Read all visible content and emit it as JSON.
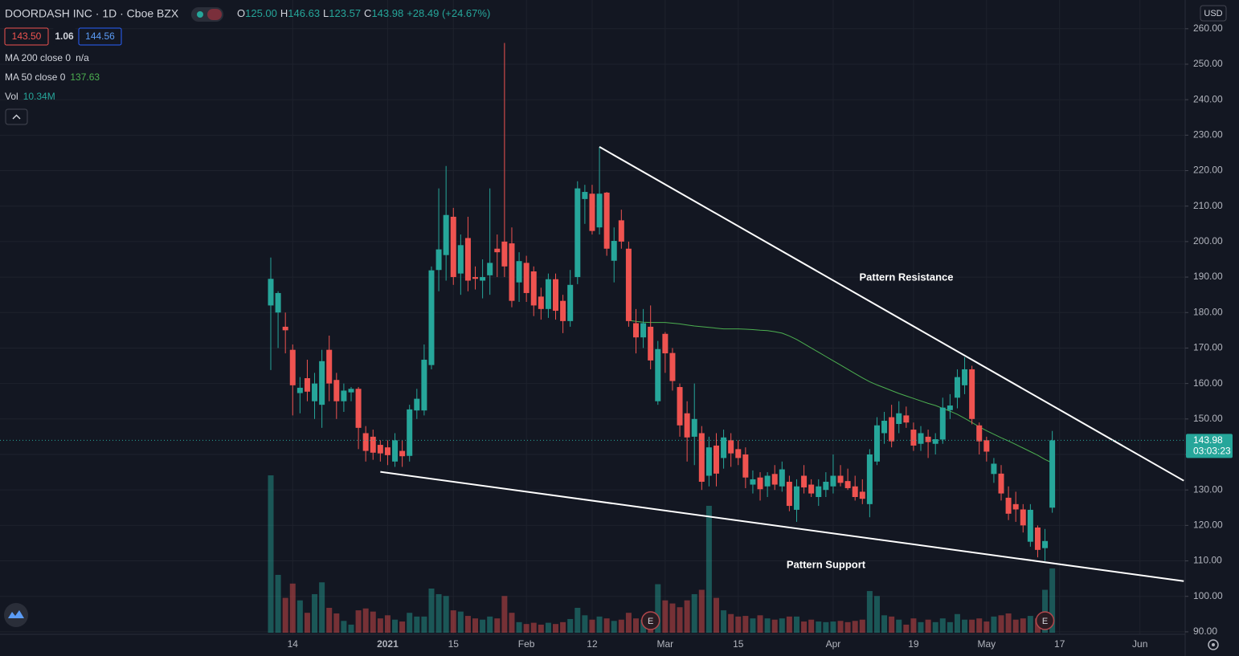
{
  "chart_data": {
    "type": "candlestick",
    "title": "DOORDASH INC · 1D · Cboe BZX",
    "ohlc_header": [
      {
        "label": "O",
        "value": "125.00"
      },
      {
        "label": "H",
        "value": "146.63"
      },
      {
        "label": "L",
        "value": "123.57"
      },
      {
        "label": "C",
        "value": "143.98"
      }
    ],
    "change": "+28.49 (+24.67%)",
    "badges": [
      "143.50",
      "1.06",
      "144.56"
    ],
    "currency": "USD",
    "up_color": "#26a69a",
    "down_color": "#ef5350",
    "grid": true,
    "categories": [
      "2020-12-09",
      "2020-12-10",
      "2020-12-11",
      "2020-12-14",
      "2020-12-15",
      "2020-12-16",
      "2020-12-17",
      "2020-12-18",
      "2020-12-21",
      "2020-12-22",
      "2020-12-23",
      "2020-12-24",
      "2020-12-28",
      "2020-12-29",
      "2020-12-30",
      "2020-12-31",
      "2021-01-04",
      "2021-01-05",
      "2021-01-06",
      "2021-01-07",
      "2021-01-08",
      "2021-01-11",
      "2021-01-12",
      "2021-01-13",
      "2021-01-14",
      "2021-01-15",
      "2021-01-19",
      "2021-01-20",
      "2021-01-21",
      "2021-01-22",
      "2021-01-25",
      "2021-01-26",
      "2021-01-27",
      "2021-01-28",
      "2021-01-29",
      "2021-02-01",
      "2021-02-02",
      "2021-02-03",
      "2021-02-04",
      "2021-02-05",
      "2021-02-08",
      "2021-02-09",
      "2021-02-10",
      "2021-02-11",
      "2021-02-12",
      "2021-02-16",
      "2021-02-17",
      "2021-02-18",
      "2021-02-19",
      "2021-02-22",
      "2021-02-23",
      "2021-02-24",
      "2021-02-25",
      "2021-02-26",
      "2021-03-01",
      "2021-03-02",
      "2021-03-03",
      "2021-03-04",
      "2021-03-05",
      "2021-03-08",
      "2021-03-09",
      "2021-03-10",
      "2021-03-11",
      "2021-03-12",
      "2021-03-15",
      "2021-03-16",
      "2021-03-17",
      "2021-03-18",
      "2021-03-19",
      "2021-03-22",
      "2021-03-23",
      "2021-03-24",
      "2021-03-25",
      "2021-03-26",
      "2021-03-29",
      "2021-03-30",
      "2021-03-31",
      "2021-04-01",
      "2021-04-05",
      "2021-04-06",
      "2021-04-07",
      "2021-04-08",
      "2021-04-09",
      "2021-04-12",
      "2021-04-13",
      "2021-04-14",
      "2021-04-15",
      "2021-04-16",
      "2021-04-19",
      "2021-04-20",
      "2021-04-21",
      "2021-04-22",
      "2021-04-23",
      "2021-04-26",
      "2021-04-27",
      "2021-04-28",
      "2021-04-29",
      "2021-04-30",
      "2021-05-03",
      "2021-05-04",
      "2021-05-05",
      "2021-05-06",
      "2021-05-07",
      "2021-05-10",
      "2021-05-11",
      "2021-05-12",
      "2021-05-13",
      "2021-05-14"
    ],
    "open": [
      182,
      180,
      176,
      169.5,
      157.3,
      161.5,
      155,
      154,
      169.5,
      161,
      155,
      157.5,
      158.5,
      146,
      145,
      142.7,
      142,
      138,
      141,
      139.6,
      152.4,
      152.4,
      165.2,
      192,
      196.2,
      207,
      191,
      201,
      190,
      189,
      190.5,
      198,
      200,
      199.5,
      188.5,
      194,
      191.6,
      184.5,
      181,
      189.4,
      183.3,
      177.6,
      190,
      212,
      213.5,
      204,
      213.8,
      194.6,
      206,
      198,
      177,
      173,
      176,
      155,
      174,
      168.6,
      159,
      151.6,
      145,
      146,
      134,
      142.5,
      139,
      144,
      141.5,
      140,
      131.5,
      133.5,
      131,
      134.5,
      131,
      132.3,
      124.4,
      134,
      131.5,
      128,
      130,
      131,
      134,
      132.5,
      131,
      129.5,
      126,
      138,
      146,
      150.5,
      148.6,
      151,
      147,
      143,
      145,
      143,
      144.2,
      152.5,
      156,
      159.5,
      164,
      148.2,
      144,
      134.5,
      134.6,
      127.8,
      126,
      124.5,
      115.4,
      119.4,
      113.6,
      125
    ],
    "high": [
      195.5,
      186,
      180,
      171,
      161.8,
      166.7,
      163,
      169.5,
      173.5,
      163,
      160,
      159,
      159,
      148,
      147,
      144,
      144,
      146,
      144,
      154,
      158.5,
      171,
      193,
      215,
      221.3,
      209.5,
      202,
      207,
      193,
      195,
      215,
      202,
      256,
      204,
      197,
      196,
      193,
      187,
      191,
      191,
      185,
      192,
      217,
      216,
      216,
      226.7,
      214,
      204,
      209,
      200,
      181,
      181,
      182,
      172,
      174.5,
      170,
      160,
      155,
      160,
      148,
      145,
      146,
      147,
      146,
      144,
      142,
      135.5,
      135,
      135,
      137,
      138,
      134,
      133,
      137,
      133,
      133,
      135,
      140,
      137,
      136,
      134,
      133,
      141.5,
      150.5,
      152,
      154,
      155,
      153.5,
      149,
      148,
      147,
      146,
      156,
      157,
      164,
      167.4,
      165,
      149,
      145,
      139,
      137,
      131,
      129.5,
      126,
      126,
      120,
      119,
      146.63
    ],
    "low": [
      163.8,
      170,
      168.5,
      151,
      151.6,
      155,
      150,
      147.5,
      155,
      150,
      152,
      155,
      141.5,
      138,
      138.5,
      138,
      137,
      136.5,
      136.5,
      138,
      150,
      151,
      164,
      186,
      189,
      187.8,
      185,
      186,
      186.5,
      184,
      185,
      190,
      190,
      181.5,
      183,
      183,
      179,
      178,
      178.5,
      178,
      174.2,
      176,
      188,
      205,
      202,
      202,
      196,
      188.5,
      198,
      176,
      168.5,
      170,
      164,
      154,
      163,
      158,
      145,
      138,
      137,
      130,
      131,
      131,
      136,
      136.5,
      137,
      130.5,
      129,
      127,
      128,
      130,
      129.5,
      124,
      121,
      129,
      128,
      125.5,
      128,
      129,
      131,
      130,
      127,
      126,
      122.3,
      137,
      143,
      142,
      146,
      147.5,
      141,
      141,
      139,
      140,
      143,
      150,
      153,
      157,
      148.5,
      140,
      138,
      132,
      127,
      121.5,
      121,
      118,
      114,
      111,
      110,
      123.57
    ],
    "close": [
      189.5,
      185.5,
      175,
      159.5,
      158.8,
      157.7,
      160,
      166.3,
      160,
      155,
      158,
      158.5,
      147.5,
      141,
      140.5,
      140.3,
      139.8,
      144,
      139.5,
      152.7,
      155.7,
      166.7,
      191.9,
      197.8,
      207.5,
      190,
      199,
      189,
      189.5,
      190,
      194,
      197,
      193,
      183.3,
      194.5,
      185.5,
      182,
      181,
      189.4,
      180.5,
      177.6,
      187.8,
      215,
      214,
      203,
      213.5,
      198,
      200.2,
      200,
      177.6,
      173,
      177,
      166.5,
      169.7,
      168.5,
      160.7,
      148.2,
      144.8,
      150,
      132.3,
      142,
      134.6,
      144.8,
      140.3,
      139,
      133.5,
      133,
      130.2,
      134,
      131.5,
      135.8,
      125.5,
      131,
      130.7,
      129,
      131,
      132.3,
      134,
      132,
      130.5,
      128,
      127.5,
      140,
      148.2,
      149.5,
      143.7,
      151.6,
      149,
      142.5,
      146,
      143.5,
      144.3,
      153.2,
      153.8,
      161.8,
      164,
      150,
      143.7,
      140.8,
      137.4,
      129,
      123.3,
      124.5,
      120,
      124.4,
      113.1,
      115.6,
      143.98
    ],
    "volume": [
      25300000,
      9300000,
      5600000,
      7900000,
      5200000,
      3200000,
      6200000,
      8100000,
      4000000,
      3100000,
      1900000,
      1300000,
      3600000,
      3900000,
      3400000,
      2300000,
      2800000,
      2100000,
      1800000,
      3200000,
      2600000,
      2600000,
      7100000,
      6200000,
      5900000,
      3600000,
      3400000,
      2700000,
      2300000,
      2100000,
      2600000,
      2300000,
      5900000,
      3200000,
      1700000,
      1400000,
      1600000,
      1300000,
      1600000,
      1400000,
      1700000,
      2200000,
      4000000,
      2800000,
      2100000,
      2600000,
      2300000,
      1900000,
      2100000,
      3200000,
      2300000,
      2100000,
      3400000,
      7800000,
      5200000,
      4700000,
      4100000,
      5200000,
      6200000,
      6900000,
      20400000,
      5600000,
      3600000,
      3000000,
      2600000,
      2700000,
      2300000,
      2800000,
      2300000,
      2100000,
      2300000,
      2600000,
      2600000,
      1800000,
      2100000,
      1800000,
      1700000,
      1800000,
      1900000,
      1700000,
      1900000,
      2100000,
      6700000,
      5900000,
      2800000,
      2600000,
      2100000,
      1300000,
      2300000,
      1700000,
      2100000,
      1700000,
      2300000,
      1700000,
      3000000,
      2100000,
      2100000,
      2300000,
      1800000,
      2600000,
      2800000,
      3100000,
      2100000,
      2300000,
      2700000,
      2300000,
      6900000,
      10340000
    ],
    "indicators": [
      {
        "name": "MA 200 close 0",
        "value": "n/a"
      },
      {
        "name": "MA 50 close 0",
        "value": "137.63",
        "color": "#4caf50",
        "values": [
          null,
          null,
          null,
          null,
          null,
          null,
          null,
          null,
          null,
          null,
          null,
          null,
          null,
          null,
          null,
          null,
          null,
          null,
          null,
          null,
          null,
          null,
          null,
          null,
          null,
          null,
          null,
          null,
          null,
          null,
          null,
          null,
          null,
          null,
          null,
          null,
          null,
          null,
          null,
          null,
          null,
          null,
          null,
          null,
          null,
          null,
          null,
          null,
          null,
          177.8,
          177.5,
          177.3,
          177.2,
          177.2,
          177.2,
          177.0,
          176.8,
          176.5,
          176.2,
          176.0,
          175.8,
          175.6,
          175.4,
          175.4,
          175.4,
          175.3,
          175.2,
          175.0,
          174.9,
          174.6,
          174.2,
          173.4,
          172.4,
          171.2,
          170.0,
          168.8,
          167.6,
          166.4,
          165.2,
          164.0,
          162.8,
          161.6,
          160.5,
          159.6,
          158.8,
          158.0,
          157.2,
          156.5,
          155.8,
          155.1,
          154.4,
          153.8,
          153.0,
          152.2,
          151.3,
          150.2,
          149.0,
          147.8,
          146.7,
          145.7,
          144.7,
          143.8,
          142.8,
          141.8,
          140.8,
          139.8,
          138.6,
          137.63
        ]
      },
      {
        "name": "Vol",
        "value": "10.34M"
      }
    ],
    "last_price": {
      "value": 143.98,
      "label": "143.98"
    },
    "countdown": "03:03:23",
    "trendlines": [
      {
        "name": "Pattern Resistance",
        "x": [
          "2021-02-16",
          "2021-06-09"
        ],
        "y": [
          226.7,
          132.6
        ]
      },
      {
        "name": "Pattern Support",
        "x": [
          "2020-12-31",
          "2021-06-09"
        ],
        "y": [
          135.1,
          104.3
        ]
      }
    ],
    "earnings": [
      {
        "date": "2021-02-25",
        "label": "E"
      },
      {
        "date": "2021-05-13",
        "label": "E"
      }
    ],
    "ylim": [
      89.3,
      268.1
    ],
    "yticks": [
      {
        "value": 90,
        "label": "90.00"
      },
      {
        "value": 100,
        "label": "100.00"
      },
      {
        "value": 110,
        "label": "110.00"
      },
      {
        "value": 120,
        "label": "120.00"
      },
      {
        "value": 130,
        "label": "130.00"
      },
      {
        "value": 140,
        "label": "140.00"
      },
      {
        "value": 150,
        "label": "150.00"
      },
      {
        "value": 160,
        "label": "160.00"
      },
      {
        "value": 170,
        "label": "170.00"
      },
      {
        "value": 180,
        "label": "180.00"
      },
      {
        "value": 190,
        "label": "190.00"
      },
      {
        "value": 200,
        "label": "200.00"
      },
      {
        "value": 210,
        "label": "210.00"
      },
      {
        "value": 220,
        "label": "220.00"
      },
      {
        "value": 230,
        "label": "230.00"
      },
      {
        "value": 240,
        "label": "240.00"
      },
      {
        "value": 250,
        "label": "250.00"
      },
      {
        "value": 260,
        "label": "260.00"
      }
    ],
    "xticks": [
      {
        "value": "2020-12-14",
        "label": "14"
      },
      {
        "value": "2021-01-04",
        "label": "2021"
      },
      {
        "value": "2021-01-15",
        "label": "15"
      },
      {
        "value": "2021-02-01",
        "label": "Feb"
      },
      {
        "value": "2021-02-12",
        "label": "12"
      },
      {
        "value": "2021-03-01",
        "label": "Mar"
      },
      {
        "value": "2021-03-15",
        "label": "15"
      },
      {
        "value": "2021-04-01",
        "label": "Apr"
      },
      {
        "value": "2021-04-19",
        "label": "19"
      },
      {
        "value": "2021-05-03",
        "label": "May"
      },
      {
        "value": "2021-05-17",
        "label": "17"
      },
      {
        "value": "2021-06-01",
        "label": "Jun"
      }
    ]
  }
}
